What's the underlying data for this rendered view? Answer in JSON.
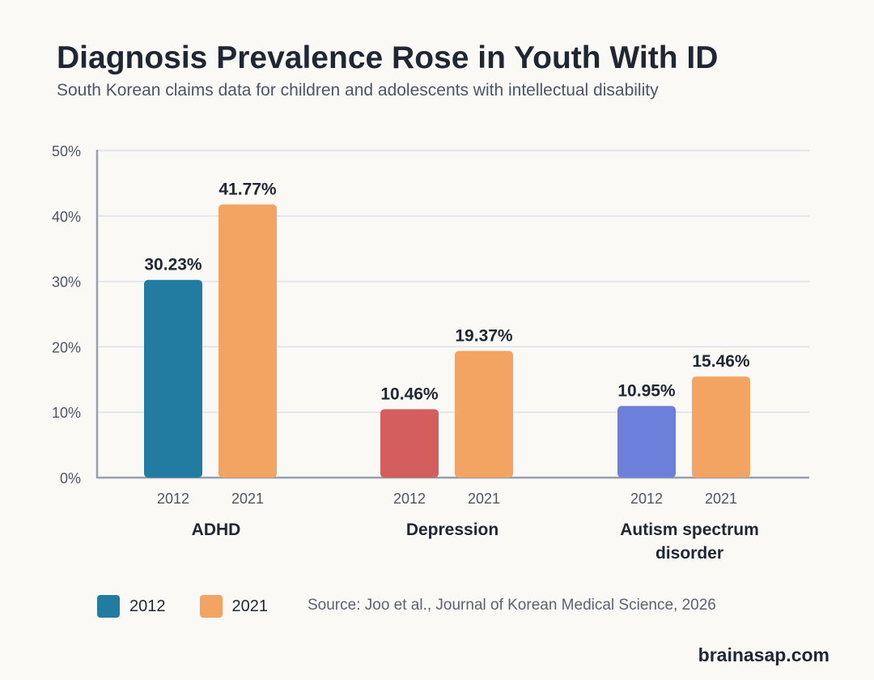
{
  "title": "Diagnosis Prevalence Rose in Youth With ID",
  "subtitle": "South Korean claims data for children and adolescents with intellectual disability",
  "source": "Source: Joo et al., Journal of Korean Medical Science, 2026",
  "brand": "brainasap.com",
  "legend": [
    {
      "label": "2012",
      "color": "#227ba1"
    },
    {
      "label": "2021",
      "color": "#f3a462"
    }
  ],
  "chart_data": {
    "type": "bar",
    "title": "Diagnosis Prevalence Rose in Youth With ID",
    "categories": [
      {
        "lines": [
          "ADHD"
        ]
      },
      {
        "lines": [
          "Depression"
        ]
      },
      {
        "lines": [
          "Autism spectrum",
          "disorder"
        ]
      }
    ],
    "bar_labels": [
      "2012",
      "2021"
    ],
    "values": [
      [
        30.23,
        41.77
      ],
      [
        10.46,
        19.37
      ],
      [
        10.95,
        15.46
      ]
    ],
    "value_labels": [
      [
        "30.23%",
        "41.77%"
      ],
      [
        "10.46%",
        "19.37%"
      ],
      [
        "10.95%",
        "15.46%"
      ]
    ],
    "colors": [
      [
        "#227ba1",
        "#f3a462"
      ],
      [
        "#d45e5e",
        "#f3a462"
      ],
      [
        "#6c7fdb",
        "#f3a462"
      ]
    ],
    "ylim": [
      0,
      50
    ],
    "yticks": [
      {
        "value": 0,
        "label": "0%"
      },
      {
        "value": 10,
        "label": "10%"
      },
      {
        "value": 20,
        "label": "20%"
      },
      {
        "value": 30,
        "label": "30%"
      },
      {
        "value": 40,
        "label": "40%"
      },
      {
        "value": 50,
        "label": "50%"
      }
    ],
    "grid": true,
    "legend_position": "bottom-left"
  }
}
